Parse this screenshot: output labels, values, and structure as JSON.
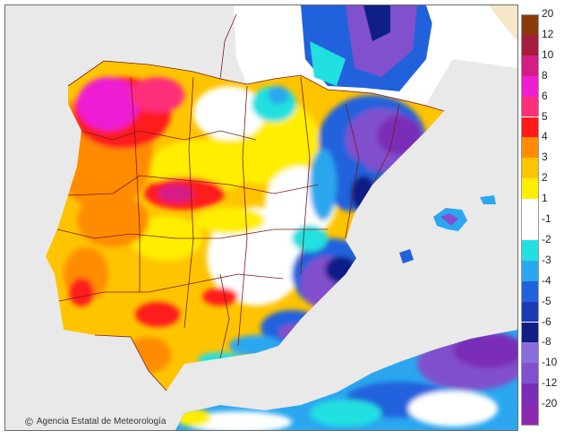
{
  "credit": {
    "text": "Agencia Estatal de Meteorología",
    "icon": "copyright-circle-icon"
  },
  "legend": {
    "bands": [
      {
        "label": "20",
        "color": "#8b3a0e"
      },
      {
        "label": "12",
        "color": "#a51c3c"
      },
      {
        "label": "10",
        "color": "#d41d86"
      },
      {
        "label": "8",
        "color": "#ee1fd2"
      },
      {
        "label": "6",
        "color": "#ff2f7a"
      },
      {
        "label": "5",
        "color": "#ff1a1a"
      },
      {
        "label": "4",
        "color": "#ff8c00"
      },
      {
        "label": "3",
        "color": "#ffc400"
      },
      {
        "label": "2",
        "color": "#ffee00"
      },
      {
        "label": "1",
        "color": "#ffffff"
      },
      {
        "label": "-1",
        "color": "#ffffff"
      },
      {
        "label": "-2",
        "color": "#22e0e0"
      },
      {
        "label": "-3",
        "color": "#2ba7ef"
      },
      {
        "label": "-4",
        "color": "#2162dc"
      },
      {
        "label": "-5",
        "color": "#1a3bb4"
      },
      {
        "label": "-6",
        "color": "#0f1f86"
      },
      {
        "label": "-8",
        "color": "#8a6ee0"
      },
      {
        "label": "-10",
        "color": "#8150cc"
      },
      {
        "label": "-12",
        "color": "#7a2eb7"
      },
      {
        "label": "-20",
        "color": "#8a28b0"
      }
    ]
  },
  "map": {
    "sea_color": "#e9e9e9",
    "border_color": "#7b1a1a",
    "land_hidden_color": "#f7e7c8"
  }
}
